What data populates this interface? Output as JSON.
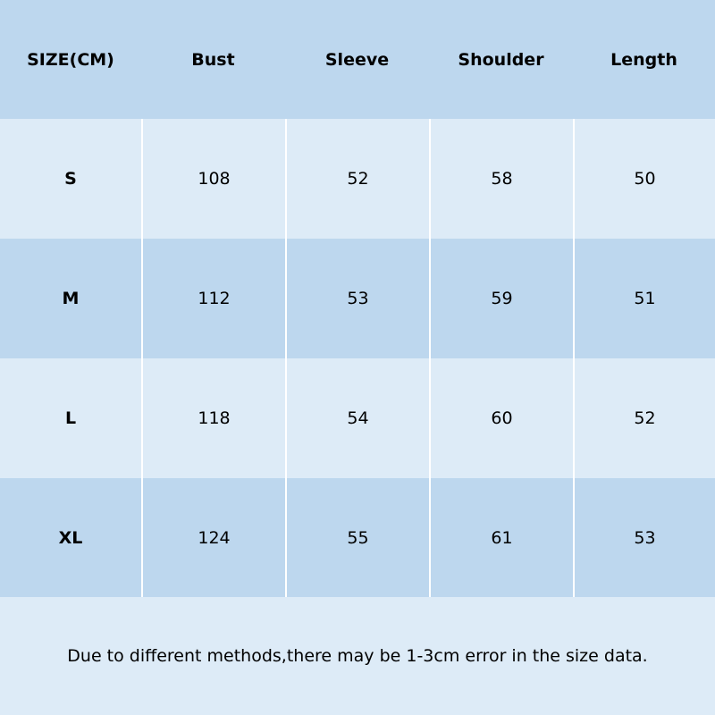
{
  "table": {
    "header": [
      "SIZE(CM)",
      "Bust",
      "Sleeve",
      "Shoulder",
      "Length"
    ],
    "rows": [
      [
        "S",
        108,
        52,
        58,
        50
      ],
      [
        "M",
        112,
        53,
        59,
        51
      ],
      [
        "L",
        118,
        54,
        60,
        52
      ],
      [
        "XL",
        124,
        55,
        61,
        53
      ]
    ]
  },
  "footer": {
    "note": "Due to different methods,there may be 1-3cm error in the size data."
  }
}
